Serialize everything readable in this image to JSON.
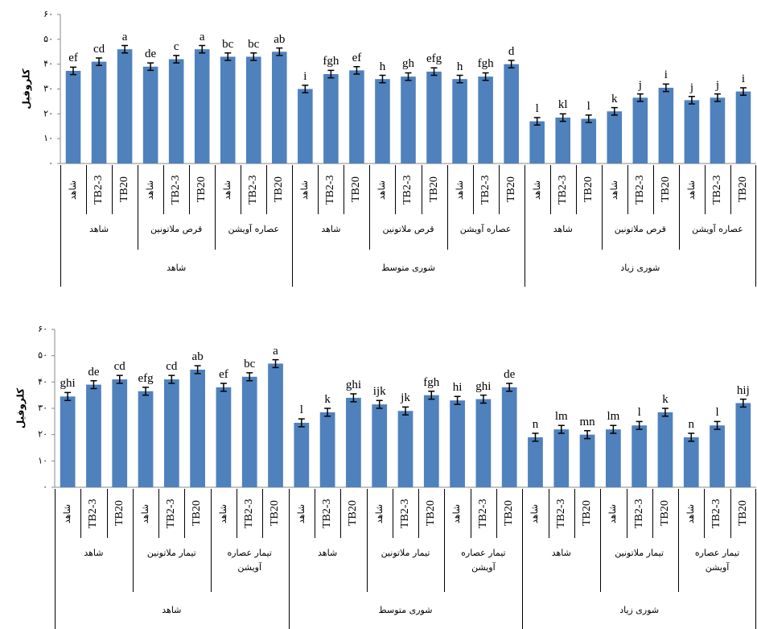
{
  "chart_data": [
    {
      "type": "bar",
      "ylabel": "کلروفیل",
      "color": "#4f81bd",
      "ylim": [
        0,
        60
      ],
      "yticks": [
        {
          "value": 0,
          "label": "۰"
        },
        {
          "value": 10,
          "label": "۱۰"
        },
        {
          "value": 20,
          "label": "۲۰"
        },
        {
          "value": 30,
          "label": "۳۰"
        },
        {
          "value": 40,
          "label": "۴۰"
        },
        {
          "value": 50,
          "label": "۵۰"
        },
        {
          "value": 60,
          "label": "۶۰"
        }
      ],
      "groups": [
        {
          "name": "شاهد",
          "subgroups": [
            {
              "name": "شاهد",
              "categories": [
                "شاهد",
                "TB2-3",
                "TB20"
              ]
            },
            {
              "name": "قرص ملاتونین",
              "categories": [
                "شاهد",
                "TB2-3",
                "TB20"
              ]
            },
            {
              "name": "عصاره آویشن",
              "categories": [
                "شاهد",
                "TB2-3",
                "TB20"
              ]
            }
          ]
        },
        {
          "name": "شوری متوسط",
          "subgroups": [
            {
              "name": "شاهد",
              "categories": [
                "شاهد",
                "TB2-3",
                "TB20"
              ]
            },
            {
              "name": "قرص ملاتونین",
              "categories": [
                "شاهد",
                "TB2-3",
                "TB20"
              ]
            },
            {
              "name": "عصاره آویشن",
              "categories": [
                "شاهد",
                "TB2-3",
                "TB20"
              ]
            }
          ]
        },
        {
          "name": "شوری زیاد",
          "subgroups": [
            {
              "name": "شاهد",
              "categories": [
                "شاهد",
                "TB2-3",
                "TB20"
              ]
            },
            {
              "name": "قرص ملاتونین",
              "categories": [
                "شاهد",
                "TB2-3",
                "TB20"
              ]
            },
            {
              "name": "عصاره آویشن",
              "categories": [
                "شاهد",
                "TB2-3",
                "TB20"
              ]
            }
          ]
        }
      ],
      "values": [
        37.3,
        41,
        46,
        39,
        42,
        46,
        43,
        43,
        45,
        30,
        36,
        37.5,
        34,
        35,
        37,
        34,
        35,
        40,
        17,
        18.5,
        18,
        21,
        26.5,
        30.5,
        25.5,
        26.5,
        29
      ],
      "errors": [
        1.5,
        1.5,
        1.5,
        1.5,
        1.5,
        1.5,
        1.5,
        1.5,
        1.5,
        1.5,
        1.5,
        1.5,
        1.5,
        1.5,
        1.5,
        1.5,
        1.5,
        1.5,
        1.5,
        1.5,
        1.5,
        1.5,
        1.5,
        1.5,
        1.5,
        1.5,
        1.5
      ],
      "annotations": [
        "ef",
        "cd",
        "a",
        "de",
        "c",
        "a",
        "bc",
        "bc",
        "ab",
        "i",
        "fgh",
        "ef",
        "h",
        "gh",
        "efg",
        "h",
        "fgh",
        "d",
        "l",
        "kl",
        "l",
        "k",
        "j",
        "i",
        "j",
        "j",
        "i"
      ]
    },
    {
      "type": "bar",
      "ylabel": "کلروفیل",
      "color": "#4f81bd",
      "ylim": [
        0,
        60
      ],
      "yticks": [
        {
          "value": 0,
          "label": "۰"
        },
        {
          "value": 10,
          "label": "۱۰"
        },
        {
          "value": 20,
          "label": "۲۰"
        },
        {
          "value": 30,
          "label": "۳۰"
        },
        {
          "value": 40,
          "label": "۴۰"
        },
        {
          "value": 50,
          "label": "۵۰"
        },
        {
          "value": 60,
          "label": "۶۰"
        }
      ],
      "groups": [
        {
          "name": "شاهد",
          "subgroups": [
            {
              "name": "شاهد",
              "categories": [
                "شاهد",
                "TB2-3",
                "TB20"
              ]
            },
            {
              "name": "تیمار ملاتونین",
              "categories": [
                "شاهد",
                "TB2-3",
                "TB20"
              ]
            },
            {
              "name": "تیمار عصاره آویشن",
              "categories": [
                "شاهد",
                "TB2-3",
                "TB20"
              ]
            }
          ]
        },
        {
          "name": "شوری متوسط",
          "subgroups": [
            {
              "name": "شاهد",
              "categories": [
                "شاهد",
                "TB2-3",
                "TB20"
              ]
            },
            {
              "name": "تیمار ملاتونین",
              "categories": [
                "شاهد",
                "TB2-3",
                "TB20"
              ]
            },
            {
              "name": "تیمار عصاره آویشن",
              "categories": [
                "شاهد",
                "TB2-3",
                "TB20"
              ]
            }
          ]
        },
        {
          "name": "شوری زیاد",
          "subgroups": [
            {
              "name": "شاهد",
              "categories": [
                "شاهد",
                "TB2-3",
                "TB20"
              ]
            },
            {
              "name": "تیمار ملاتونین",
              "categories": [
                "شاهد",
                "TB2-3",
                "TB20"
              ]
            },
            {
              "name": "تیمار عصاره آویشن",
              "categories": [
                "شاهد",
                "TB2-3",
                "TB20"
              ]
            }
          ]
        }
      ],
      "values": [
        34.5,
        39,
        41,
        36.5,
        41,
        44.7,
        38,
        42,
        47,
        24.5,
        28.5,
        34,
        31.5,
        29,
        35,
        33,
        33.5,
        38,
        19,
        22,
        20,
        22,
        23.5,
        28.5,
        19,
        23.5,
        32
      ],
      "errors": [
        1.5,
        1.5,
        1.5,
        1.5,
        1.5,
        1.5,
        1.5,
        1.5,
        1.5,
        1.5,
        1.5,
        1.5,
        1.5,
        1.5,
        1.5,
        1.5,
        1.5,
        1.5,
        1.5,
        1.5,
        1.5,
        1.5,
        1.5,
        1.5,
        1.5,
        1.5,
        1.5
      ],
      "annotations": [
        "ghi",
        "de",
        "cd",
        "efg",
        "cd",
        "ab",
        "ef",
        "bc",
        "a",
        "l",
        "k",
        "ghi",
        "ijk",
        "jk",
        "fgh",
        "hi",
        "ghi",
        "de",
        "n",
        "lm",
        "mn",
        "lm",
        "l",
        "k",
        "n",
        "l",
        "hij"
      ]
    }
  ]
}
